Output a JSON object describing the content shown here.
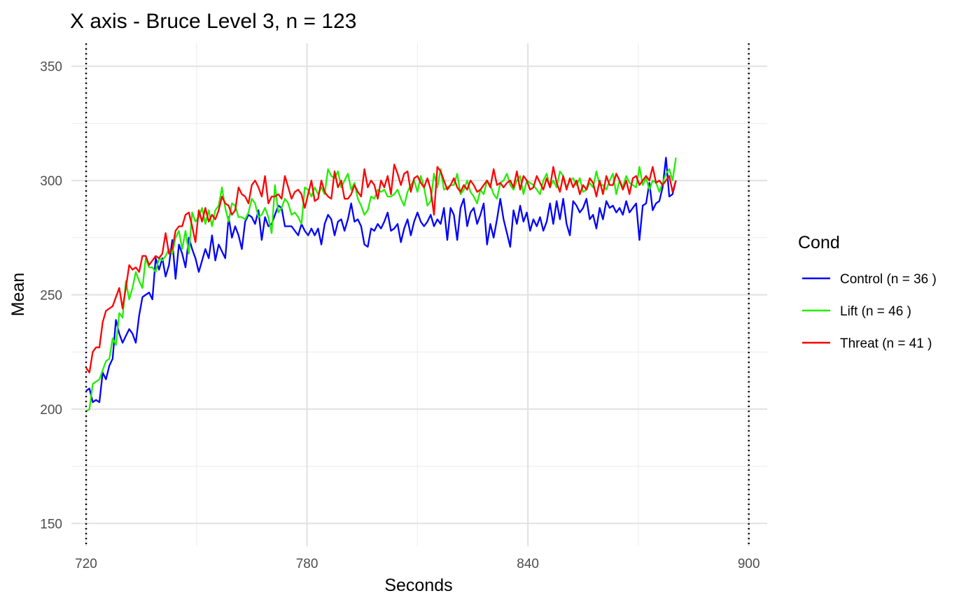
{
  "chart_data": {
    "type": "line",
    "title": "X axis - Bruce Level 3, n =  123",
    "xlabel": "Seconds",
    "ylabel": "Mean",
    "xlim": [
      716,
      905
    ],
    "ylim": [
      140,
      360
    ],
    "x_ticks": [
      720,
      780,
      840,
      900
    ],
    "x_minor_ticks": [
      750,
      810,
      870
    ],
    "y_ticks": [
      150,
      200,
      250,
      300,
      350
    ],
    "y_minor_ticks": [
      175,
      225,
      275,
      325
    ],
    "grid": true,
    "vlines": [
      {
        "x": 720,
        "style": "dotted"
      },
      {
        "x": 900,
        "style": "dotted"
      }
    ],
    "legend": {
      "title": "Cond",
      "position": "right"
    },
    "x_start": 720,
    "x_step": 0.9,
    "series": [
      {
        "name": "Control (n = 36 )",
        "color": "#0000ff",
        "values": [
          208,
          209,
          203,
          204,
          203,
          216,
          213,
          219,
          222,
          239,
          233,
          229,
          232,
          235,
          233,
          229,
          241,
          249,
          250,
          251,
          248,
          266,
          261,
          266,
          258,
          263,
          274,
          257,
          272,
          268,
          262,
          275,
          270,
          266,
          260,
          265,
          270,
          266,
          276,
          265,
          272,
          269,
          266,
          284,
          275,
          280,
          276,
          270,
          282,
          285,
          284,
          281,
          287,
          274,
          284,
          280,
          281,
          285,
          289,
          288,
          280,
          280,
          280,
          278,
          276,
          281,
          278,
          276,
          279,
          276,
          279,
          272,
          281,
          285,
          283,
          276,
          282,
          283,
          278,
          283,
          290,
          282,
          283,
          280,
          272,
          271,
          279,
          278,
          281,
          279,
          282,
          286,
          278,
          279,
          281,
          273,
          279,
          283,
          276,
          282,
          286,
          282,
          280,
          282,
          285,
          280,
          283,
          281,
          288,
          274,
          288,
          285,
          274,
          288,
          292,
          280,
          286,
          288,
          281,
          285,
          290,
          272,
          281,
          275,
          283,
          292,
          283,
          277,
          271,
          287,
          281,
          289,
          282,
          286,
          278,
          283,
          280,
          284,
          278,
          282,
          290,
          281,
          291,
          283,
          292,
          281,
          276,
          291,
          289,
          286,
          288,
          292,
          283,
          285,
          279,
          288,
          283,
          291,
          288,
          289,
          286,
          288,
          285,
          291,
          286,
          288,
          290,
          274,
          289,
          290,
          299,
          287,
          290,
          291,
          297,
          310,
          293,
          294,
          300
        ]
      },
      {
        "name": "Lift (n = 46 )",
        "color": "#22ee00",
        "values": [
          199,
          200,
          211,
          212,
          213,
          217,
          221,
          222,
          231,
          228,
          242,
          240,
          256,
          248,
          253,
          260,
          256,
          253,
          266,
          262,
          262,
          260,
          266,
          265,
          267,
          270,
          268,
          275,
          278,
          270,
          278,
          268,
          286,
          282,
          284,
          288,
          281,
          287,
          280,
          287,
          289,
          297,
          288,
          282,
          290,
          289,
          284,
          284,
          283,
          286,
          292,
          290,
          284,
          285,
          288,
          284,
          277,
          298,
          286,
          288,
          292,
          290,
          285,
          286,
          284,
          281,
          297,
          296,
          293,
          297,
          294,
          297,
          294,
          305,
          302,
          301,
          304,
          297,
          300,
          303,
          296,
          299,
          292,
          289,
          285,
          287,
          293,
          292,
          296,
          295,
          296,
          293,
          293,
          294,
          296,
          292,
          289,
          295,
          298,
          300,
          295,
          302,
          297,
          289,
          291,
          303,
          297,
          305,
          296,
          297,
          298,
          298,
          303,
          294,
          296,
          300,
          295,
          293,
          290,
          296,
          294,
          300,
          298,
          294,
          292,
          299,
          300,
          303,
          298,
          296,
          300,
          302,
          294,
          300,
          299,
          298,
          296,
          294,
          300,
          303,
          297,
          300,
          297,
          304,
          302,
          297,
          300,
          301,
          298,
          301,
          295,
          296,
          299,
          297,
          304,
          298,
          298,
          296,
          300,
          303,
          294,
          300,
          297,
          302,
          299,
          298,
          297,
          306,
          298,
          301,
          296,
          300,
          299,
          295,
          299,
          303,
          305,
          300,
          310
        ]
      },
      {
        "name": "Threat (n = 41 )",
        "color": "#ff0000",
        "values": [
          218,
          216,
          225,
          227,
          227,
          238,
          243,
          244,
          245,
          249,
          253,
          244,
          253,
          263,
          261,
          262,
          260,
          267,
          267,
          263,
          265,
          267,
          266,
          268,
          277,
          268,
          270,
          278,
          280,
          280,
          285,
          286,
          280,
          273,
          287,
          282,
          288,
          282,
          285,
          283,
          287,
          293,
          290,
          289,
          285,
          287,
          297,
          294,
          293,
          290,
          298,
          300,
          297,
          293,
          302,
          290,
          293,
          293,
          294,
          292,
          302,
          297,
          292,
          295,
          296,
          294,
          288,
          294,
          300,
          291,
          292,
          300,
          295,
          293,
          292,
          304,
          297,
          300,
          292,
          292,
          294,
          298,
          295,
          293,
          305,
          297,
          300,
          298,
          292,
          300,
          297,
          302,
          294,
          307,
          303,
          298,
          303,
          304,
          295,
          301,
          302,
          299,
          297,
          301,
          296,
          285,
          306,
          304,
          300,
          296,
          298,
          301,
          297,
          295,
          298,
          296,
          300,
          298,
          295,
          296,
          298,
          300,
          297,
          305,
          298,
          299,
          297,
          299,
          300,
          297,
          304,
          296,
          302,
          300,
          296,
          297,
          302,
          299,
          296,
          301,
          297,
          306,
          299,
          295,
          302,
          296,
          301,
          297,
          300,
          294,
          298,
          296,
          301,
          299,
          293,
          300,
          294,
          302,
          298,
          298,
          303,
          300,
          296,
          300,
          294,
          301,
          302,
          298,
          300,
          302,
          300,
          306,
          299,
          300,
          298,
          300,
          302,
          295,
          300
        ]
      }
    ]
  }
}
